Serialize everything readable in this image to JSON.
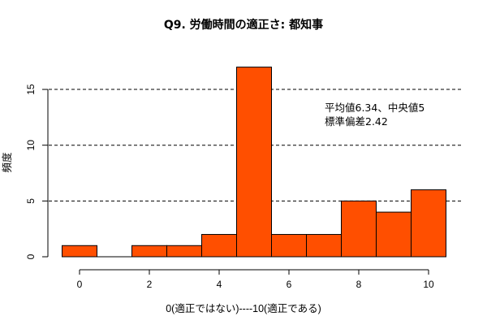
{
  "chart_data": {
    "type": "bar",
    "title": "Q9. 労働時間の適正さ: 都知事",
    "xlabel": "0(適正ではない)----10(適正である)",
    "ylabel": "頻度",
    "categories": [
      0,
      1,
      2,
      3,
      4,
      5,
      6,
      7,
      8,
      9,
      10
    ],
    "values": [
      1,
      0,
      1,
      1,
      2,
      17,
      2,
      2,
      5,
      4,
      6
    ],
    "xticks": [
      0,
      2,
      4,
      6,
      8,
      10
    ],
    "yticks": [
      0,
      5,
      10,
      15
    ],
    "ylim": [
      0,
      17
    ],
    "bar_color": "#FF4F00",
    "gridlines": [
      5,
      10,
      15
    ],
    "annotations": [
      "平均値6.34、中央値5",
      "標準偏差2.42"
    ]
  }
}
